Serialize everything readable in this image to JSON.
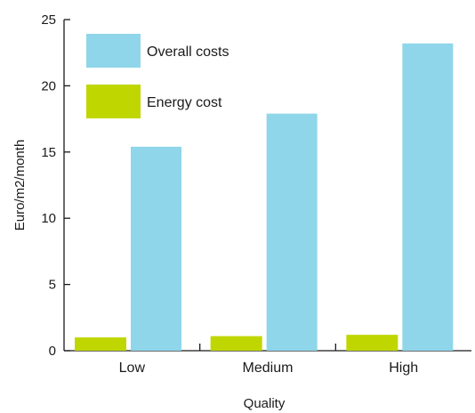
{
  "chart_data": {
    "type": "bar",
    "categories": [
      "Low",
      "Medium",
      "High"
    ],
    "series": [
      {
        "name": "Energy cost",
        "color": "#bfd600",
        "values": [
          1.0,
          1.1,
          1.2
        ]
      },
      {
        "name": "Overall costs",
        "color": "#8fd6ea",
        "values": [
          15.4,
          17.9,
          23.2
        ]
      }
    ],
    "title": "",
    "xlabel": "Quality",
    "ylabel": "Euro/m2/month",
    "ylim": [
      0,
      25
    ],
    "yticks": [
      0,
      5,
      10,
      15,
      20,
      25
    ],
    "legend_order": [
      "Overall costs",
      "Energy cost"
    ],
    "legend_position": "top-left",
    "grid": false
  }
}
